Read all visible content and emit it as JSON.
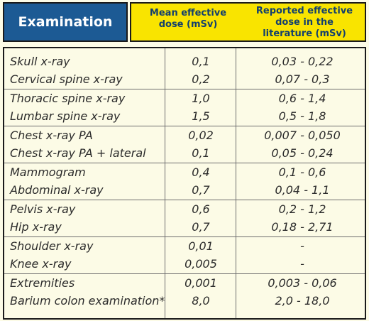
{
  "header": {
    "examination": "Examination",
    "mean_line1": "Mean effective",
    "mean_line2": "dose (mSv)",
    "lit_line1": "Reported effective",
    "lit_line2": "dose in the",
    "lit_line3": "literature (mSv)"
  },
  "rows": [
    {
      "exam": "Skull x-ray",
      "mean": "0,1",
      "lit": "0,03 - 0,22"
    },
    {
      "exam": "Cervical spine x-ray",
      "mean": "0,2",
      "lit": "0,07 - 0,3"
    },
    {
      "exam": "Thoracic spine x-ray",
      "mean": "1,0",
      "lit": "0,6 - 1,4"
    },
    {
      "exam": "Lumbar spine x-ray",
      "mean": "1,5",
      "lit": "0,5 - 1,8"
    },
    {
      "exam": "Chest x-ray PA",
      "mean": "0,02",
      "lit": "0,007 - 0,050"
    },
    {
      "exam": "Chest x-ray PA + lateral",
      "mean": "0,1",
      "lit": "0,05 - 0,24"
    },
    {
      "exam": "Mammogram",
      "mean": "0,4",
      "lit": "0,1 - 0,6"
    },
    {
      "exam": "Abdominal x-ray",
      "mean": "0,7",
      "lit": "0,04 - 1,1"
    },
    {
      "exam": "Pelvis x-ray",
      "mean": "0,6",
      "lit": "0,2 - 1,2"
    },
    {
      "exam": "Hip x-ray",
      "mean": "0,7",
      "lit": "0,18 - 2,71"
    },
    {
      "exam": "Shoulder x-ray",
      "mean": "0,01",
      "lit": "-"
    },
    {
      "exam": "Knee x-ray",
      "mean": "0,005",
      "lit": "-"
    },
    {
      "exam": "Extremities",
      "mean": "0,001",
      "lit": "0,003 - 0,06"
    },
    {
      "exam": "Barium colon examination*",
      "mean": "8,0",
      "lit": "2,0 - 18,0"
    }
  ],
  "colors": {
    "header_blue": "#1c5a94",
    "header_yellow": "#f9e400",
    "header_text_dark": "#123f6e",
    "background": "#fcfbe6"
  }
}
